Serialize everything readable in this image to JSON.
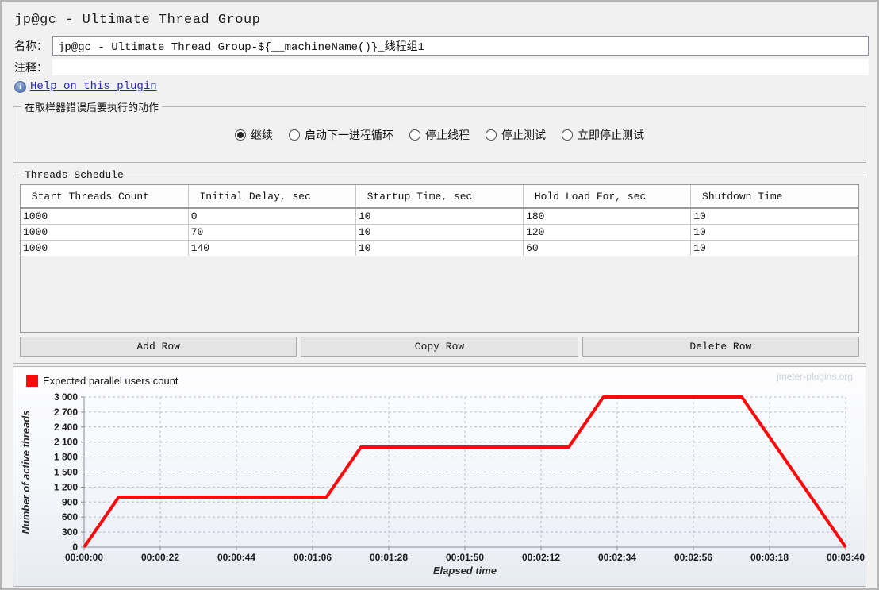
{
  "window": {
    "title": "jp@gc - Ultimate Thread Group"
  },
  "form": {
    "name_label": "名称：",
    "name_value": "jp@gc - Ultimate Thread Group-${__machineName()}_线程组1",
    "comment_label": "注释：",
    "comment_value": "",
    "help_link_label": "Help on this plugin",
    "info_icon_glyph": "i"
  },
  "action_panel": {
    "title": "在取样器错误后要执行的动作",
    "options": [
      {
        "label": "继续",
        "selected": true
      },
      {
        "label": "启动下一进程循环",
        "selected": false
      },
      {
        "label": "停止线程",
        "selected": false
      },
      {
        "label": "停止测试",
        "selected": false
      },
      {
        "label": "立即停止测试",
        "selected": false
      }
    ]
  },
  "schedule": {
    "title": "Threads Schedule",
    "columns": [
      "Start Threads Count",
      "Initial Delay, sec",
      "Startup Time, sec",
      "Hold Load For, sec",
      "Shutdown Time"
    ],
    "rows": [
      [
        "1000",
        "0",
        "10",
        "180",
        "10"
      ],
      [
        "1000",
        "70",
        "10",
        "120",
        "10"
      ],
      [
        "1000",
        "140",
        "10",
        "60",
        "10"
      ]
    ],
    "buttons": [
      "Add Row",
      "Copy Row",
      "Delete Row"
    ]
  },
  "chart_data": {
    "type": "line",
    "title": "",
    "legend": "Expected parallel users count",
    "legend_position": "top-left",
    "watermark": "jmeter-plugins.org",
    "xlabel": "Elapsed time",
    "ylabel": "Number of active threads",
    "xlim_sec": [
      0,
      220
    ],
    "ylim": [
      0,
      3000
    ],
    "grid": true,
    "line_color": "#fa0a0a",
    "x_ticks": [
      {
        "sec": 0,
        "label": "00:00:00"
      },
      {
        "sec": 22,
        "label": "00:00:22"
      },
      {
        "sec": 44,
        "label": "00:00:44"
      },
      {
        "sec": 66,
        "label": "00:01:06"
      },
      {
        "sec": 88,
        "label": "00:01:28"
      },
      {
        "sec": 110,
        "label": "00:01:50"
      },
      {
        "sec": 132,
        "label": "00:02:12"
      },
      {
        "sec": 154,
        "label": "00:02:34"
      },
      {
        "sec": 176,
        "label": "00:02:56"
      },
      {
        "sec": 198,
        "label": "00:03:18"
      },
      {
        "sec": 220,
        "label": "00:03:40"
      }
    ],
    "y_ticks": [
      0,
      300,
      600,
      900,
      1200,
      1500,
      1800,
      2100,
      2400,
      2700,
      3000
    ],
    "series": [
      {
        "name": "Expected parallel users count",
        "color": "#fa0a0a",
        "points_sec_threads": [
          [
            0,
            0
          ],
          [
            10,
            1000
          ],
          [
            70,
            1000
          ],
          [
            80,
            2000
          ],
          [
            140,
            2000
          ],
          [
            150,
            3000
          ],
          [
            190,
            3000
          ],
          [
            220,
            0
          ]
        ]
      }
    ]
  }
}
